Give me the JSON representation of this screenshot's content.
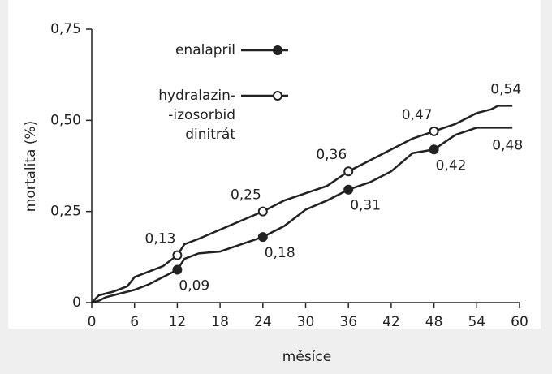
{
  "chart_data": {
    "type": "line",
    "x_label": "měsíce",
    "y_label": "mortalita (%)",
    "x": [
      0,
      1,
      2,
      3,
      5,
      6,
      8,
      10,
      12,
      13,
      15,
      18,
      21,
      24,
      27,
      30,
      33,
      36,
      39,
      42,
      45,
      48,
      51,
      54,
      56,
      57,
      59
    ],
    "series": [
      {
        "name": "enalapril",
        "color": "#222222",
        "marker": "filled",
        "values": [
          0,
          0.005,
          0.015,
          0.02,
          0.03,
          0.035,
          0.05,
          0.07,
          0.09,
          0.12,
          0.135,
          0.14,
          0.16,
          0.18,
          0.21,
          0.255,
          0.28,
          0.31,
          0.33,
          0.36,
          0.41,
          0.42,
          0.46,
          0.48,
          0.48,
          0.48,
          0.48
        ],
        "value_labels": [
          null,
          null,
          null,
          null,
          null,
          null,
          null,
          null,
          "0,09",
          null,
          null,
          null,
          null,
          "0,18",
          null,
          null,
          null,
          "0,31",
          null,
          null,
          null,
          "0,42",
          null,
          null,
          null,
          null,
          "0,48"
        ]
      },
      {
        "name": "hydralazin-\n-izosorbid\ndinitrát",
        "color": "#222222",
        "marker": "open",
        "values": [
          0,
          0.02,
          0.025,
          0.03,
          0.045,
          0.07,
          0.085,
          0.1,
          0.13,
          0.16,
          0.175,
          0.2,
          0.225,
          0.25,
          0.28,
          0.3,
          0.32,
          0.36,
          0.39,
          0.42,
          0.45,
          0.47,
          0.49,
          0.52,
          0.53,
          0.54,
          0.54
        ],
        "value_labels": [
          null,
          null,
          null,
          null,
          null,
          null,
          null,
          null,
          "0,13",
          null,
          null,
          null,
          null,
          "0,25",
          null,
          null,
          null,
          "0,36",
          null,
          null,
          null,
          "0,47",
          null,
          null,
          null,
          null,
          "0,54"
        ]
      }
    ],
    "xlim": [
      0,
      60
    ],
    "xticks": [
      0,
      6,
      12,
      18,
      24,
      30,
      36,
      42,
      48,
      54,
      60
    ],
    "ylim": [
      0,
      0.75
    ],
    "yticks": [
      0,
      {
        "value": 0.25,
        "label": "0,25"
      },
      {
        "value": 0.5,
        "label": "0,50"
      },
      {
        "value": 0.75,
        "label": "0,75"
      }
    ],
    "grid": false
  }
}
